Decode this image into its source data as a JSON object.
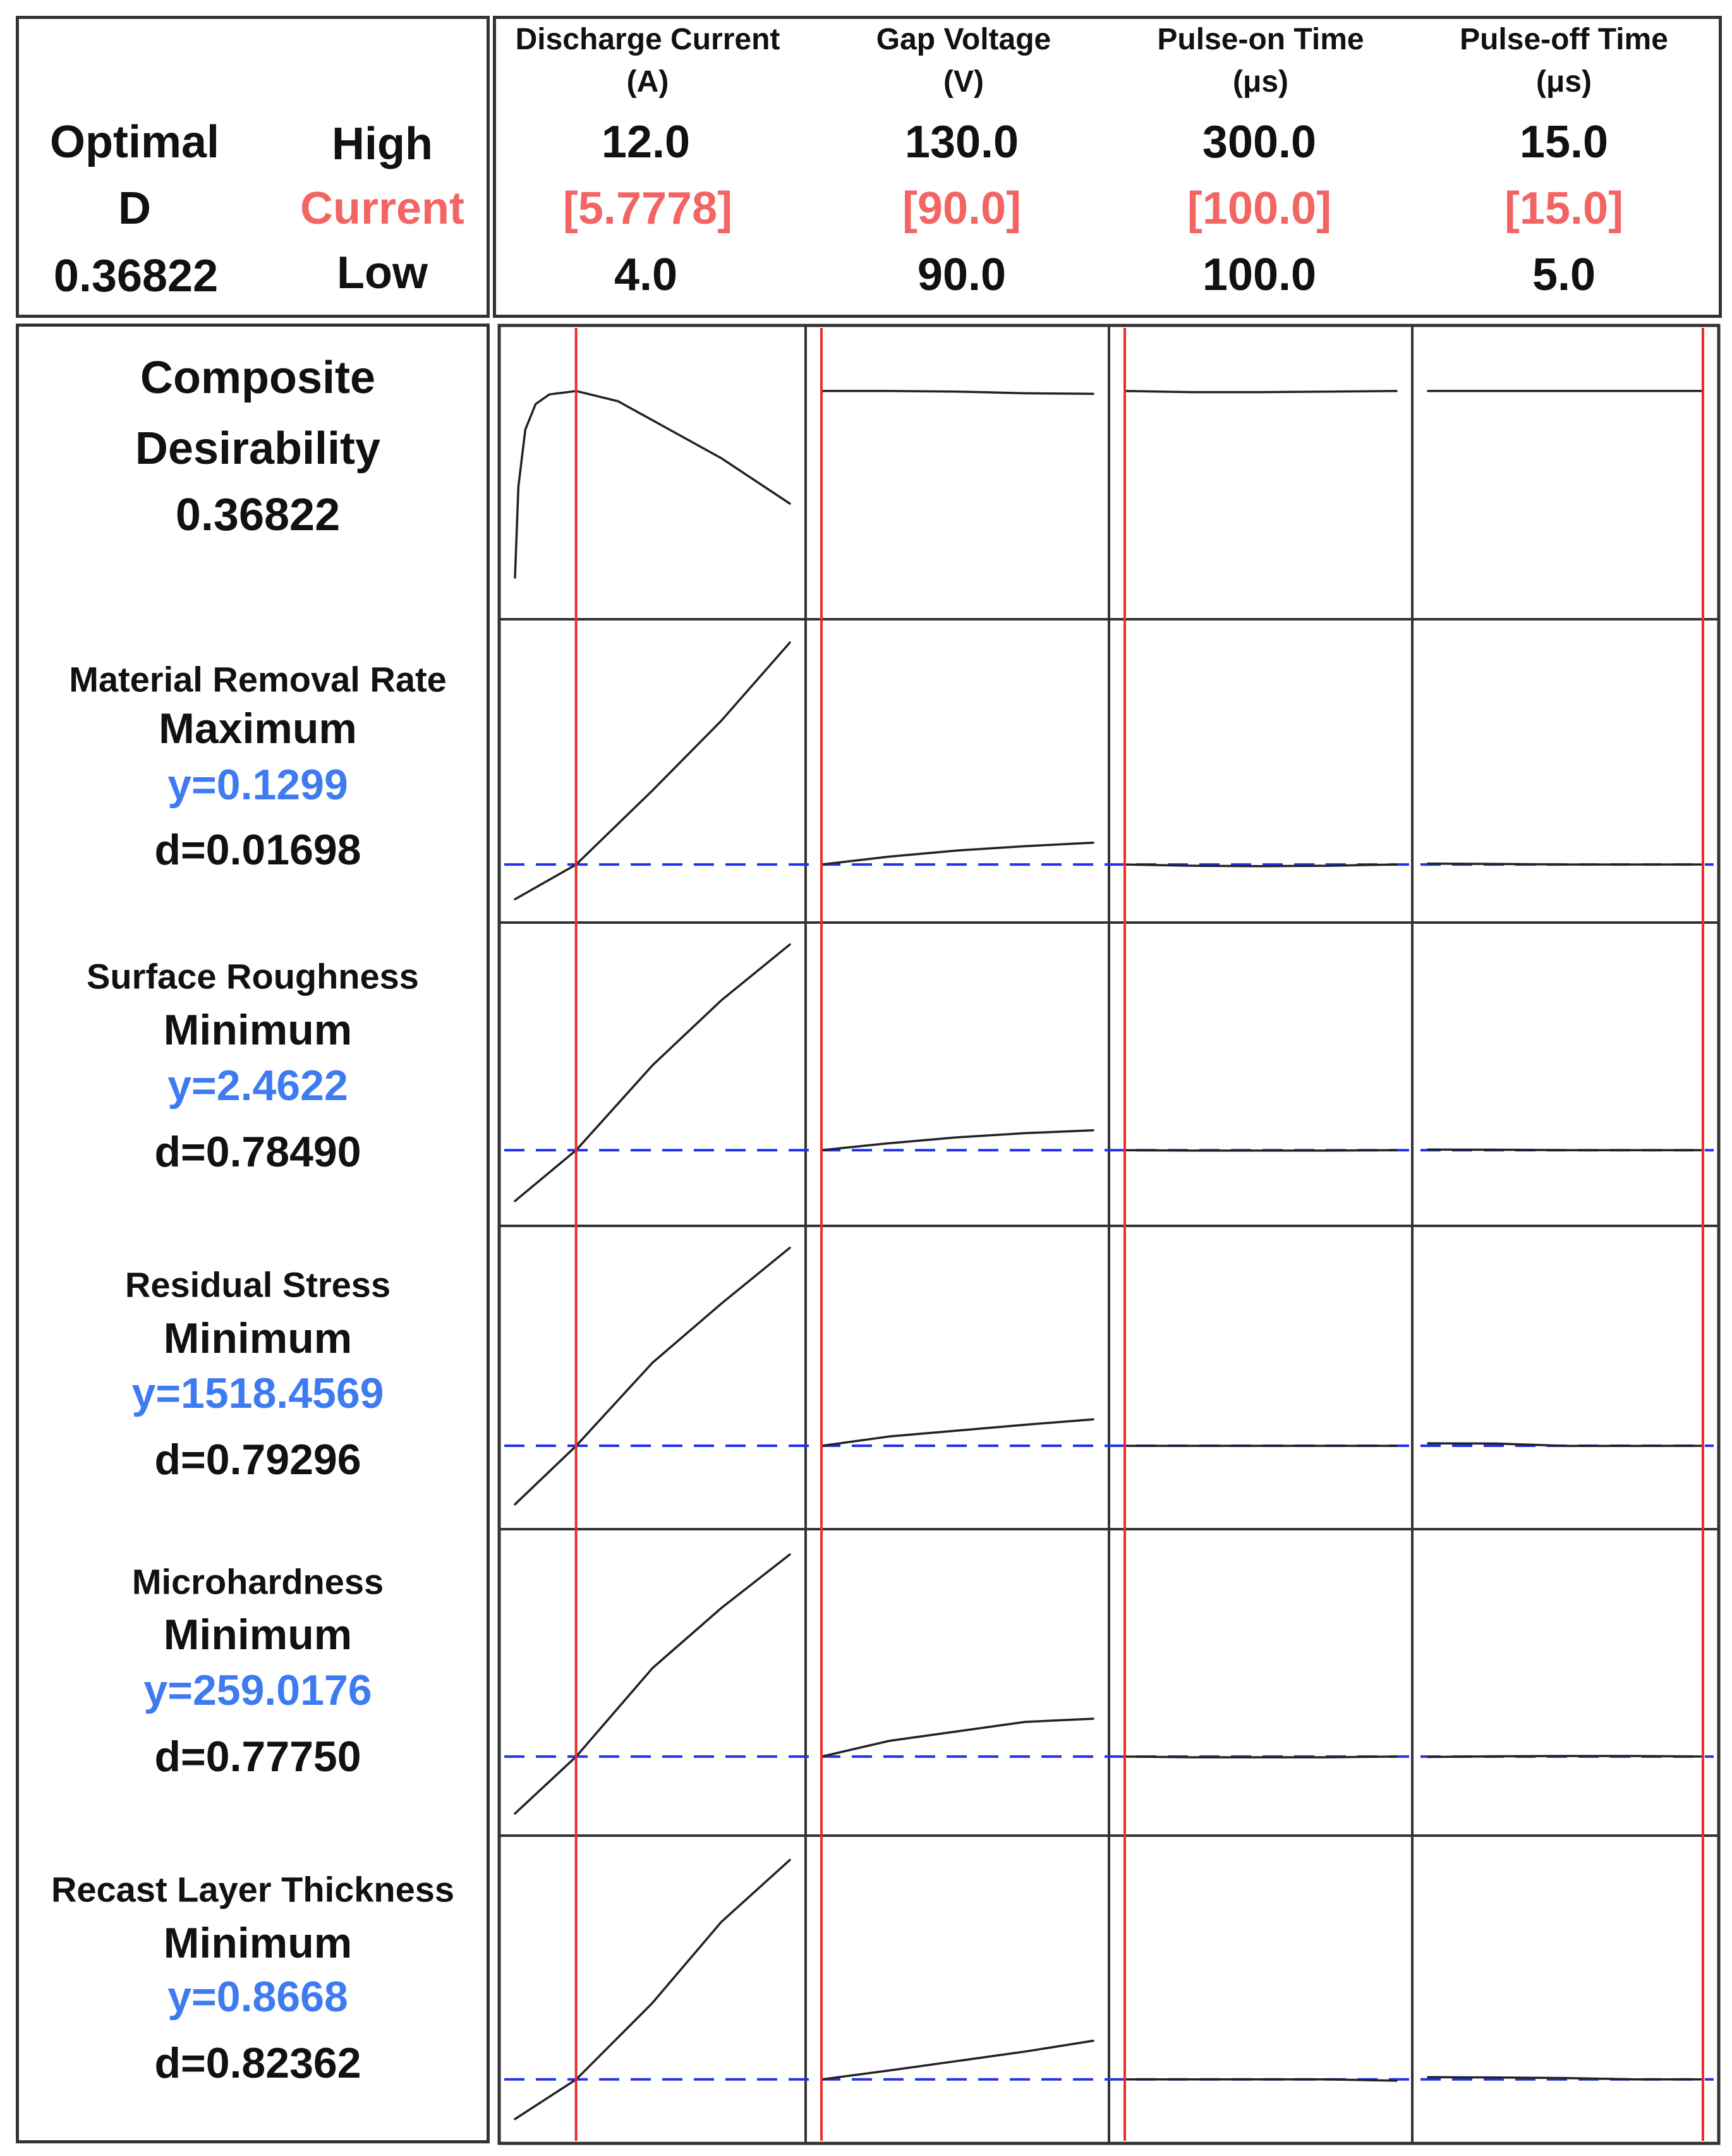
{
  "optimal": {
    "label_line1": "Optimal",
    "label_line2": "D",
    "value": "0.36822",
    "high_label": "High",
    "current_label": "Current",
    "low_label": "Low"
  },
  "factors": [
    {
      "name": "Discharge Current",
      "unit": "(A)",
      "high": "12.0",
      "current": "[5.7778]",
      "low": "4.0"
    },
    {
      "name": "Gap Voltage",
      "unit": "(V)",
      "high": "130.0",
      "current": "[90.0]",
      "low": "90.0"
    },
    {
      "name": "Pulse-on Time",
      "unit": "(μs)",
      "high": "300.0",
      "current": "[100.0]",
      "low": "100.0"
    },
    {
      "name": "Pulse-off Time",
      "unit": "(μs)",
      "high": "15.0",
      "current": "[15.0]",
      "low": "5.0"
    }
  ],
  "composite": {
    "line1": "Composite",
    "line2": "Desirability",
    "value": "0.36822"
  },
  "responses": [
    {
      "name": "Material Removal Rate",
      "goal": "Maximum",
      "y": "y=0.1299",
      "d": "d=0.01698"
    },
    {
      "name": "Surface Roughness",
      "goal": "Minimum",
      "y": "y=2.4622",
      "d": "d=0.78490"
    },
    {
      "name": "Residual Stress",
      "goal": "Minimum",
      "y": "y=1518.4569",
      "d": "d=0.79296"
    },
    {
      "name": "Microhardness",
      "goal": "Minimum",
      "y": "y=259.0176",
      "d": "d=0.77750"
    },
    {
      "name": "Recast Layer Thickness",
      "goal": "Minimum",
      "y": "y=0.8668",
      "d": "d=0.82362"
    }
  ],
  "chart_data": {
    "type": "line",
    "description_free": true,
    "factor_ranges": [
      {
        "factor": "Discharge Current",
        "low": 4.0,
        "high": 12.0,
        "current": 5.7778
      },
      {
        "factor": "Gap Voltage",
        "low": 90.0,
        "high": 130.0,
        "current": 90.0
      },
      {
        "factor": "Pulse-on Time",
        "low": 100.0,
        "high": 300.0,
        "current": 100.0
      },
      {
        "factor": "Pulse-off Time",
        "low": 5.0,
        "high": 15.0,
        "current": 15.0
      }
    ],
    "rows": [
      {
        "response": "Composite Desirability",
        "current_y": 0.36822,
        "ylim": [
          0,
          0.45
        ],
        "has_reference_line": false,
        "curves": [
          {
            "x": [
              4.0,
              4.1,
              4.3,
              4.6,
              5.0,
              5.78,
              7.0,
              8.5,
              10.0,
              12.0
            ],
            "y": [
              0.04,
              0.2,
              0.3,
              0.345,
              0.362,
              0.368,
              0.35,
              0.3,
              0.25,
              0.17
            ]
          },
          {
            "x": [
              90,
              100,
              110,
              120,
              130
            ],
            "y": [
              0.368,
              0.368,
              0.367,
              0.364,
              0.363
            ]
          },
          {
            "x": [
              100,
              150,
              200,
              250,
              300
            ],
            "y": [
              0.368,
              0.366,
              0.366,
              0.367,
              0.368
            ]
          },
          {
            "x": [
              5,
              7.5,
              10,
              12.5,
              15
            ],
            "y": [
              0.368,
              0.368,
              0.368,
              0.368,
              0.368
            ]
          }
        ]
      },
      {
        "response": "Material Removal Rate",
        "current_y": 0.1299,
        "ylim": [
          0.04,
          0.65
        ],
        "has_reference_line": true,
        "curves": [
          {
            "x": [
              4.0,
              5.78,
              8.0,
              10.0,
              12.0
            ],
            "y": [
              0.05,
              0.1299,
              0.3,
              0.46,
              0.64
            ]
          },
          {
            "x": [
              90,
              100,
              110,
              120,
              130
            ],
            "y": [
              0.1299,
              0.148,
              0.162,
              0.172,
              0.18
            ]
          },
          {
            "x": [
              100,
              150,
              200,
              250,
              300
            ],
            "y": [
              0.1299,
              0.127,
              0.126,
              0.127,
              0.1299
            ]
          },
          {
            "x": [
              5,
              7.5,
              10,
              12.5,
              15
            ],
            "y": [
              0.132,
              0.131,
              0.1299,
              0.1299,
              0.1299
            ]
          }
        ]
      },
      {
        "response": "Surface Roughness",
        "current_y": 2.4622,
        "ylim": [
          1.5,
          6.0
        ],
        "has_reference_line": true,
        "curves": [
          {
            "x": [
              4.0,
              5.78,
              8.0,
              10.0,
              12.0
            ],
            "y": [
              1.6,
              2.4622,
              3.9,
              5.0,
              5.95
            ]
          },
          {
            "x": [
              90,
              100,
              110,
              120,
              130
            ],
            "y": [
              2.4622,
              2.58,
              2.68,
              2.75,
              2.8
            ]
          },
          {
            "x": [
              100,
              150,
              200,
              250,
              300
            ],
            "y": [
              2.4622,
              2.455,
              2.455,
              2.455,
              2.4622
            ]
          },
          {
            "x": [
              5,
              7.5,
              10,
              12.5,
              15
            ],
            "y": [
              2.472,
              2.47,
              2.4622,
              2.4622,
              2.4622
            ]
          }
        ]
      },
      {
        "response": "Residual Stress",
        "current_y": 1518.4569,
        "ylim": [
          1300,
          2200
        ],
        "has_reference_line": true,
        "curves": [
          {
            "x": [
              4.0,
              5.78,
              8.0,
              10.0,
              12.0
            ],
            "y": [
              1320,
              1518.4569,
              1800,
              2000,
              2190
            ]
          },
          {
            "x": [
              90,
              100,
              110,
              120,
              130
            ],
            "y": [
              1518.4569,
              1550,
              1570,
              1590,
              1608
            ]
          },
          {
            "x": [
              100,
              150,
              200,
              250,
              300
            ],
            "y": [
              1518.4569,
              1518.4569,
              1518.4569,
              1518.4569,
              1518.4569
            ]
          },
          {
            "x": [
              5,
              7.5,
              10,
              12.5,
              15
            ],
            "y": [
              1527,
              1526,
              1518,
              1518,
              1518.4569
            ]
          }
        ]
      },
      {
        "response": "Microhardness",
        "current_y": 259.0176,
        "ylim": [
          240,
          325
        ],
        "has_reference_line": true,
        "curves": [
          {
            "x": [
              4.0,
              5.78,
              8.0,
              10.0,
              12.0
            ],
            "y": [
              241,
              259.0176,
              287,
              306,
              323
            ]
          },
          {
            "x": [
              90,
              100,
              110,
              120,
              130
            ],
            "y": [
              259.0176,
              264,
              267,
              270,
              271
            ]
          },
          {
            "x": [
              100,
              150,
              200,
              250,
              300
            ],
            "y": [
              259.0176,
              258.8,
              258.8,
              258.8,
              259.0176
            ]
          },
          {
            "x": [
              5,
              7.5,
              10,
              12.5,
              15
            ],
            "y": [
              258.9,
              259.1,
              259.2,
              259.2,
              259.0176
            ]
          }
        ]
      },
      {
        "response": "Recast Layer Thickness",
        "current_y": 0.8668,
        "ylim": [
          0.7,
          1.7
        ],
        "has_reference_line": true,
        "curves": [
          {
            "x": [
              4.0,
              5.78,
              8.0,
              10.0,
              12.0
            ],
            "y": [
              0.72,
              0.8668,
              1.15,
              1.45,
              1.68
            ]
          },
          {
            "x": [
              90,
              100,
              110,
              120,
              130
            ],
            "y": [
              0.8668,
              0.9,
              0.935,
              0.97,
              1.01
            ]
          },
          {
            "x": [
              100,
              150,
              200,
              250,
              300
            ],
            "y": [
              0.8668,
              0.8668,
              0.8668,
              0.8668,
              0.862
            ]
          },
          {
            "x": [
              5,
              7.5,
              10,
              12.5,
              15
            ],
            "y": [
              0.875,
              0.874,
              0.872,
              0.867,
              0.8668
            ]
          }
        ]
      }
    ],
    "colors": {
      "current_line": "#ef2b2b",
      "reference_line": "#2233ee",
      "curve": "#222222"
    }
  }
}
